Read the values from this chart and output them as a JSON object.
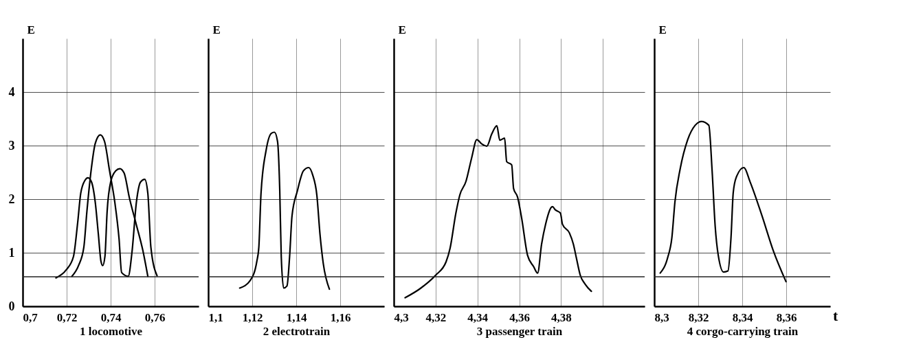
{
  "chart_data": [
    {
      "type": "line",
      "xlabel": "1 locomotive",
      "ylabel": "E",
      "xlim": [
        0.7,
        0.78
      ],
      "ylim": [
        0,
        5
      ],
      "xticks": [
        {
          "value": 0.7,
          "label": "0,7"
        },
        {
          "value": 0.72,
          "label": "0,72"
        },
        {
          "value": 0.74,
          "label": "0,74"
        },
        {
          "value": 0.76,
          "label": "0,76"
        }
      ],
      "yticks": [
        0,
        1,
        2,
        3,
        4
      ],
      "grid": true,
      "marker": "none",
      "line_style": "solid",
      "ref_lines": [
        {
          "axis": "y",
          "value": 0.55,
          "label": null
        }
      ],
      "series": [
        {
          "color": "#000000",
          "x": [
            0.7151,
            0.7198,
            0.7231,
            0.725,
            0.7264,
            0.7283,
            0.7297,
            0.7313,
            0.733,
            0.7344,
            0.7356,
            0.7364,
            0.7374,
            0.7384,
            0.74,
            0.7423,
            0.7442,
            0.7461,
            0.7485,
            0.7517,
            0.7546,
            0.7569
          ],
          "values": [
            0.53,
            0.68,
            0.93,
            1.56,
            2.11,
            2.35,
            2.4,
            2.32,
            1.94,
            1.35,
            0.84,
            0.76,
            0.93,
            1.77,
            2.32,
            2.53,
            2.57,
            2.49,
            2.03,
            1.52,
            1.05,
            0.56
          ]
        },
        {
          "color": "#000000",
          "x": [
            0.7224,
            0.7254,
            0.7278,
            0.7292,
            0.7311,
            0.733,
            0.7353,
            0.7372,
            0.7395,
            0.7419,
            0.7438,
            0.745,
            0.748,
            0.7497,
            0.7517,
            0.7536,
            0.7555,
            0.7569,
            0.7583,
            0.7611
          ],
          "values": [
            0.56,
            0.76,
            1.1,
            1.77,
            2.53,
            3.04,
            3.2,
            3.08,
            2.53,
            1.94,
            1.27,
            0.63,
            0.56,
            1.01,
            1.94,
            2.32,
            2.37,
            2.11,
            1.1,
            0.57
          ]
        }
      ]
    },
    {
      "type": "line",
      "xlabel": "2 electrotrain",
      "ylabel": "E",
      "xlim": [
        1.1,
        1.18
      ],
      "ylim": [
        0,
        5
      ],
      "tick_labels": "x",
      "xticks": [
        {
          "value": 1.1,
          "label": "1,1"
        },
        {
          "value": 1.12,
          "label": "1,12"
        },
        {
          "value": 1.14,
          "label": "1,14"
        },
        {
          "value": 1.16,
          "label": "1,16"
        }
      ],
      "yticks": [
        0,
        1,
        2,
        3,
        4
      ],
      "grid": true,
      "marker": "none",
      "line_style": "solid",
      "ref_lines": [
        {
          "axis": "y",
          "value": 0.55,
          "label": null
        }
      ],
      "series": [
        {
          "color": "#000000",
          "x": [
            1.1143,
            1.1192,
            1.1221,
            1.123,
            1.124,
            1.1263,
            1.1287,
            1.1301,
            1.1315,
            1.1325,
            1.1332,
            1.1343,
            1.1358,
            1.137,
            1.1381,
            1.1405,
            1.1433,
            1.1457,
            1.1475,
            1.1494,
            1.1508,
            1.1523,
            1.1551
          ],
          "values": [
            0.34,
            0.49,
            0.84,
            1.1,
            2.11,
            2.91,
            3.23,
            3.25,
            3.08,
            2.19,
            0.93,
            0.34,
            0.38,
            0.93,
            1.69,
            2.15,
            2.53,
            2.59,
            2.45,
            2.07,
            1.35,
            0.8,
            0.32
          ]
        }
      ]
    },
    {
      "type": "line",
      "xlabel": "3 passenger train",
      "ylabel": "E",
      "xlim": [
        4.3,
        4.42
      ],
      "ylim": [
        0,
        5
      ],
      "tick_labels": "x",
      "xticks": [
        {
          "value": 4.3,
          "label": "4,3"
        },
        {
          "value": 4.32,
          "label": "4,32"
        },
        {
          "value": 4.34,
          "label": "4,34"
        },
        {
          "value": 4.36,
          "label": "4,36"
        },
        {
          "value": 4.38,
          "label": "4,38"
        },
        {
          "value": 4.4,
          "label": null
        }
      ],
      "yticks": [
        0,
        1,
        2,
        3,
        4
      ],
      "grid": true,
      "marker": "none",
      "line_style": "solid",
      "ref_lines": [
        {
          "axis": "y",
          "value": 0.55,
          "label": null
        }
      ],
      "series": [
        {
          "color": "#000000",
          "x": [
            4.3054,
            4.3126,
            4.32,
            4.325,
            4.3269,
            4.3297,
            4.3316,
            4.3345,
            4.3373,
            4.3397,
            4.3421,
            4.3445,
            4.3469,
            4.3493,
            4.3507,
            4.353,
            4.354,
            4.3564,
            4.3573,
            4.3592,
            4.3611,
            4.364,
            4.3669,
            4.3688,
            4.3707,
            4.3726,
            4.3759,
            4.3773,
            4.3797,
            4.3807,
            4.384,
            4.3859,
            4.3873,
            4.3892,
            4.3916,
            4.3945
          ],
          "values": [
            0.16,
            0.33,
            0.58,
            0.83,
            1.08,
            1.74,
            2.08,
            2.33,
            2.78,
            3.11,
            3.03,
            2.99,
            3.22,
            3.37,
            3.1,
            3.14,
            2.7,
            2.64,
            2.2,
            2.04,
            1.66,
            0.95,
            0.74,
            0.62,
            1.16,
            1.53,
            1.86,
            1.8,
            1.74,
            1.53,
            1.37,
            1.16,
            0.91,
            0.58,
            0.41,
            0.28
          ]
        }
      ]
    },
    {
      "type": "line",
      "xlabel": "4 corgo-carrying train",
      "ylabel": "E",
      "xlim": [
        8.3,
        8.38
      ],
      "ylim": [
        0,
        5
      ],
      "tick_labels": "x",
      "xticks": [
        {
          "value": 8.3,
          "label": "8,3"
        },
        {
          "value": 8.32,
          "label": "8,32"
        },
        {
          "value": 8.34,
          "label": "8,34"
        },
        {
          "value": 8.36,
          "label": "8,36"
        }
      ],
      "yticks": [
        0,
        1,
        2,
        3,
        4
      ],
      "grid": true,
      "marker": "none",
      "line_style": "solid",
      "ref_lines": [
        {
          "axis": "y",
          "value": 0.55,
          "label": null
        }
      ],
      "annotations": [
        "t"
      ],
      "series": [
        {
          "color": "#000000",
          "x": [
            8.3027,
            8.3061,
            8.308,
            8.3094,
            8.3118,
            8.3152,
            8.3186,
            8.3214,
            8.3248,
            8.3263,
            8.3277,
            8.3291,
            8.3315,
            8.3335,
            8.3349,
            8.3359,
            8.3373,
            8.3407,
            8.3436,
            8.3489,
            8.3541,
            8.3599
          ],
          "values": [
            0.62,
            0.91,
            1.28,
            1.95,
            2.57,
            3.11,
            3.38,
            3.45,
            3.38,
            2.53,
            1.49,
            0.95,
            0.64,
            0.66,
            1.29,
            2.12,
            2.41,
            2.59,
            2.32,
            1.7,
            1.04,
            0.46
          ]
        }
      ]
    }
  ]
}
